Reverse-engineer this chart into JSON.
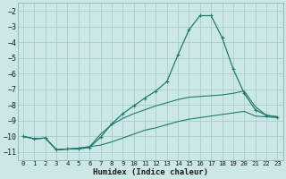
{
  "xlabel": "Humidex (Indice chaleur)",
  "bg_color": "#cce8e6",
  "grid_color": "#aaccca",
  "line_color": "#1e7b6e",
  "xlim": [
    -0.5,
    23.5
  ],
  "ylim": [
    -11.5,
    -1.5
  ],
  "yticks": [
    -2,
    -3,
    -4,
    -5,
    -6,
    -7,
    -8,
    -9,
    -10,
    -11
  ],
  "xticks": [
    0,
    1,
    2,
    3,
    4,
    5,
    6,
    7,
    8,
    9,
    10,
    11,
    12,
    13,
    14,
    15,
    16,
    17,
    18,
    19,
    20,
    21,
    22,
    23
  ],
  "curve1_x": [
    0,
    1,
    2,
    3,
    4,
    5,
    6,
    7,
    8,
    9,
    10,
    11,
    12,
    13,
    14,
    15,
    16,
    17,
    18,
    19,
    20,
    21,
    22,
    23
  ],
  "curve1_y": [
    -10.0,
    -10.15,
    -10.1,
    -10.85,
    -10.8,
    -10.8,
    -10.7,
    -10.05,
    -9.2,
    -8.55,
    -8.05,
    -7.55,
    -7.1,
    -6.5,
    -4.8,
    -3.2,
    -2.3,
    -2.3,
    -3.7,
    -5.7,
    -7.25,
    -8.3,
    -8.65,
    -8.75
  ],
  "curve2_x": [
    0,
    1,
    2,
    3,
    4,
    5,
    6,
    7,
    8,
    9,
    10,
    11,
    12,
    13,
    14,
    15,
    16,
    17,
    18,
    19,
    20,
    21,
    22,
    23
  ],
  "curve2_y": [
    -10.0,
    -10.15,
    -10.1,
    -10.85,
    -10.8,
    -10.75,
    -10.65,
    -9.85,
    -9.25,
    -8.85,
    -8.55,
    -8.3,
    -8.05,
    -7.85,
    -7.65,
    -7.5,
    -7.45,
    -7.4,
    -7.35,
    -7.25,
    -7.1,
    -8.1,
    -8.65,
    -8.75
  ],
  "curve3_x": [
    0,
    1,
    2,
    3,
    4,
    5,
    6,
    7,
    8,
    9,
    10,
    11,
    12,
    13,
    14,
    15,
    16,
    17,
    18,
    19,
    20,
    21,
    22,
    23
  ],
  "curve3_y": [
    -10.0,
    -10.15,
    -10.1,
    -10.85,
    -10.8,
    -10.75,
    -10.65,
    -10.55,
    -10.35,
    -10.1,
    -9.85,
    -9.6,
    -9.45,
    -9.25,
    -9.05,
    -8.9,
    -8.8,
    -8.7,
    -8.6,
    -8.5,
    -8.4,
    -8.7,
    -8.75,
    -8.8
  ]
}
